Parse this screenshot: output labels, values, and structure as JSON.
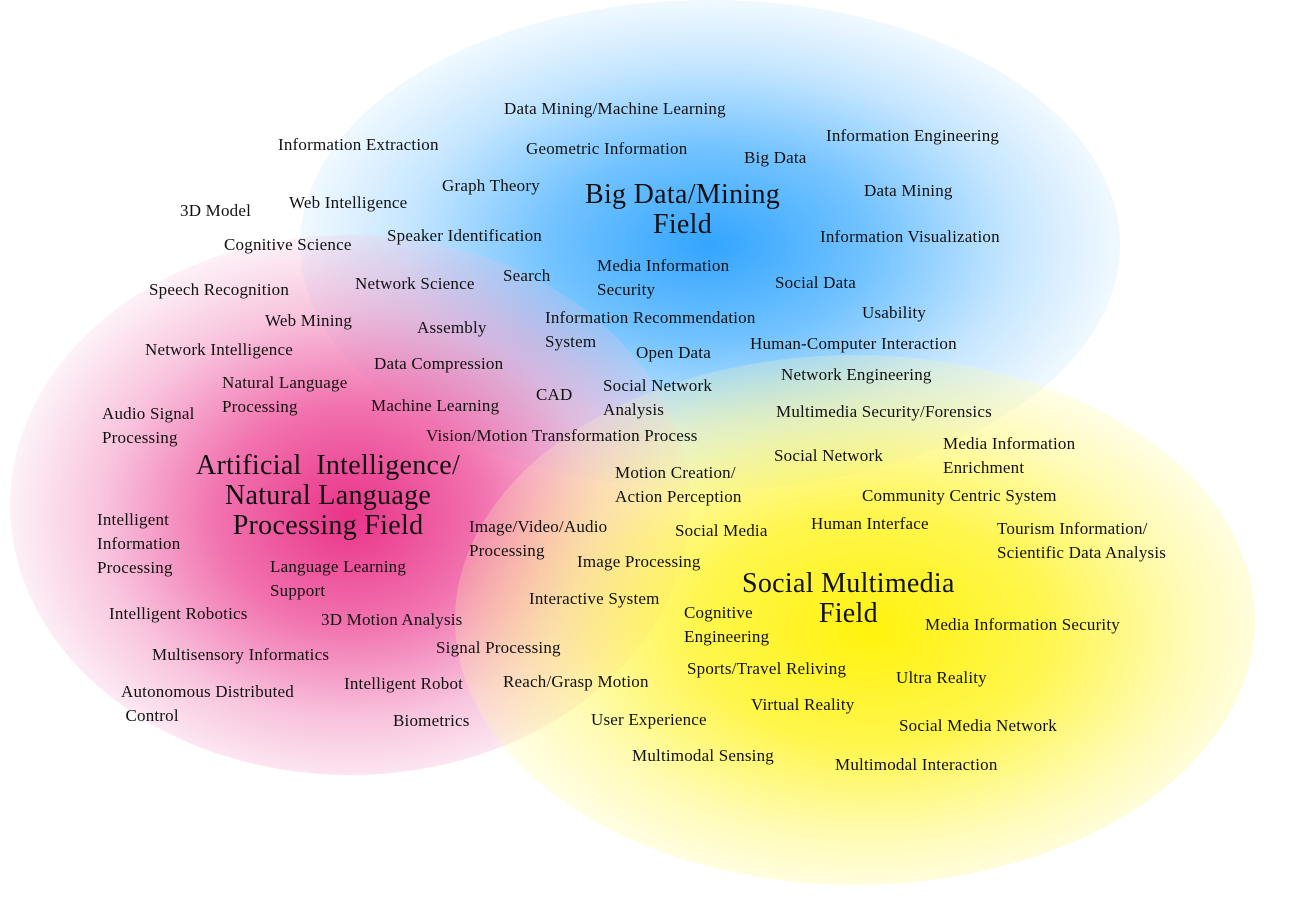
{
  "colors": {
    "big_data_field": "#2aa3ff",
    "ai_nlp_field": "#e8288a",
    "social_multimedia_field": "#fff200",
    "text": "#111111",
    "background": "#ffffff"
  },
  "fields": [
    {
      "key": "big_data",
      "label": "Big Data/Mining\nField"
    },
    {
      "key": "ai_nlp",
      "label": "Artificial  Intelligence/\nNatural Language\nProcessing Field"
    },
    {
      "key": "social_multimedia",
      "label": "Social Multimedia\nField"
    }
  ],
  "terms": [
    "Data Mining/Machine Learning",
    "Information Extraction",
    "Geometric Information",
    "Big Data",
    "Information Engineering",
    "Graph Theory",
    "Data Mining",
    "3D Model",
    "Web Intelligence",
    "Cognitive Science",
    "Speaker Identification",
    "Information Visualization",
    "Search",
    "Media Information\nSecurity",
    "Social Data",
    "Speech Recognition",
    "Network Science",
    "Usability",
    "Web Mining",
    "Assembly",
    "Information Recommendation\nSystem",
    "Network Intelligence",
    "Open Data",
    "Human-Computer Interaction",
    "Data Compression",
    "Natural Language\nProcessing",
    "Network Engineering",
    "CAD",
    "Social Network\nAnalysis",
    "Machine Learning",
    "Audio Signal\nProcessing",
    "Multimedia Security/Forensics",
    "Vision/Motion Transformation Process",
    "Media Information\nEnrichment",
    "Social Network",
    "Motion Creation/\nAction Perception",
    "Community Centric System",
    "Intelligent\nInformation\nProcessing",
    "Image/Video/Audio\nProcessing",
    "Human Interface",
    "Social Media",
    "Tourism Information/\nScientific Data Analysis",
    "Image Processing",
    "Language Learning\nSupport",
    "Interactive System",
    "Intelligent Robotics",
    "3D Motion Analysis",
    "Cognitive\nEngineering",
    "Media Information Security",
    "Signal Processing",
    "Multisensory Informatics",
    "Sports/Travel Reliving",
    "Autonomous Distributed\n Control",
    "Intelligent Robot",
    "Reach/Grasp Motion",
    "Ultra Reality",
    "Virtual Reality",
    "Biometrics",
    "User Experience",
    "Social Media Network",
    "Multimodal Sensing",
    "Multimodal Interaction"
  ]
}
